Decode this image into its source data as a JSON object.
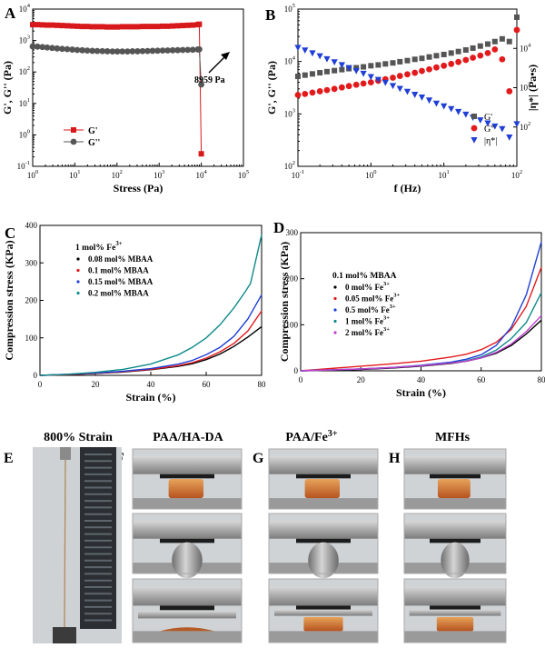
{
  "chart_data": [
    {
      "id": "A",
      "panel_label": "A",
      "type": "line",
      "xlabel": "Stress (Pa)",
      "ylabel": "G', G'' (Pa)",
      "x_scale": "log",
      "y_scale": "log",
      "xlim": [
        1,
        100000
      ],
      "ylim": [
        0.1,
        10000
      ],
      "x_ticks": [
        "10^0",
        "10^1",
        "10^2",
        "10^3",
        "10^4",
        "10^5"
      ],
      "y_ticks": [
        "10^-1",
        "10^0",
        "10^1",
        "10^2",
        "10^3",
        "10^4"
      ],
      "legend_position": "bottom-left",
      "annotation": "8959 Pa",
      "series": [
        {
          "name": "G'",
          "color": "#d7191c",
          "marker": "square",
          "x": [
            1,
            1.3,
            1.7,
            2.2,
            2.9,
            3.8,
            5,
            6.6,
            8.7,
            11.4,
            15,
            19.7,
            26,
            34,
            45,
            59,
            78,
            102,
            134,
            177,
            233,
            307,
            404,
            531,
            699,
            920,
            1211,
            1594,
            2098,
            2761,
            3634,
            4783,
            6296,
            8287,
            8959,
            10000
          ],
          "y": [
            3200,
            3200,
            3150,
            3100,
            3100,
            3050,
            3000,
            2950,
            2900,
            2850,
            2800,
            2800,
            2750,
            2750,
            2750,
            2700,
            2700,
            2700,
            2750,
            2750,
            2750,
            2750,
            2800,
            2800,
            2800,
            2800,
            2850,
            2850,
            2900,
            2950,
            3000,
            3050,
            3100,
            3200,
            3300,
            0.25
          ]
        },
        {
          "name": "G''",
          "color": "#555555",
          "marker": "circle",
          "x": [
            1,
            1.3,
            1.7,
            2.2,
            2.9,
            3.8,
            5,
            6.6,
            8.7,
            11.4,
            15,
            19.7,
            26,
            34,
            45,
            59,
            78,
            102,
            134,
            177,
            233,
            307,
            404,
            531,
            699,
            920,
            1211,
            1594,
            2098,
            2761,
            3634,
            4783,
            6296,
            8287,
            8959,
            10000
          ],
          "y": [
            650,
            640,
            620,
            600,
            580,
            560,
            545,
            530,
            515,
            500,
            490,
            480,
            470,
            465,
            460,
            455,
            450,
            450,
            450,
            450,
            455,
            455,
            460,
            465,
            470,
            475,
            480,
            485,
            490,
            495,
            500,
            505,
            510,
            520,
            525,
            40
          ]
        }
      ]
    },
    {
      "id": "B",
      "panel_label": "B",
      "type": "scatter",
      "xlabel": "f (Hz)",
      "ylabel": "G', G'' (Pa)",
      "ylabel_right": "|η*| (Pa•s)",
      "x_scale": "log",
      "y_scale": "log",
      "y2_scale": "log",
      "xlim": [
        0.1,
        100
      ],
      "ylim": [
        100,
        100000
      ],
      "y2lim": [
        10,
        100000
      ],
      "x_ticks": [
        "10^-1",
        "10^0",
        "10^1",
        "10^2"
      ],
      "y_ticks": [
        "10^2",
        "10^3",
        "10^4",
        "10^5"
      ],
      "y2_ticks": [
        "10^2",
        "10^3",
        "10^4"
      ],
      "legend_position": "bottom-right",
      "series": [
        {
          "name": "G'",
          "color": "#555555",
          "marker": "square",
          "axis": "left",
          "x": [
            0.1,
            0.125,
            0.158,
            0.2,
            0.25,
            0.316,
            0.4,
            0.5,
            0.63,
            0.79,
            1,
            1.26,
            1.58,
            2,
            2.5,
            3.16,
            4,
            5,
            6.3,
            7.9,
            10,
            12.6,
            15.8,
            20,
            25,
            31.6,
            40,
            50,
            63,
            79,
            100
          ],
          "y": [
            5200,
            5500,
            5800,
            6100,
            6400,
            6700,
            7000,
            7300,
            7600,
            7900,
            8300,
            8600,
            9000,
            9400,
            9900,
            10400,
            11000,
            11500,
            12200,
            12900,
            13600,
            14500,
            15500,
            16600,
            18000,
            19700,
            21500,
            24000,
            27000,
            24000,
            70000
          ]
        },
        {
          "name": "G''",
          "color": "#e31a1c",
          "marker": "circle",
          "axis": "left",
          "x": [
            0.1,
            0.125,
            0.158,
            0.2,
            0.25,
            0.316,
            0.4,
            0.5,
            0.63,
            0.79,
            1,
            1.26,
            1.58,
            2,
            2.5,
            3.16,
            4,
            5,
            6.3,
            7.9,
            10,
            12.6,
            15.8,
            20,
            25,
            31.6,
            40,
            50,
            63,
            79,
            100
          ],
          "y": [
            2300,
            2400,
            2550,
            2700,
            2850,
            3000,
            3200,
            3400,
            3600,
            3800,
            4000,
            4300,
            4600,
            4900,
            5300,
            5700,
            6100,
            6600,
            7100,
            7700,
            8300,
            9000,
            9800,
            10700,
            11800,
            13000,
            14500,
            17000,
            11000,
            2700,
            40000
          ]
        },
        {
          "name": "|η*|",
          "color": "#1f3fd6",
          "marker": "triangle-down",
          "axis": "right",
          "x": [
            0.1,
            0.125,
            0.158,
            0.2,
            0.25,
            0.316,
            0.4,
            0.5,
            0.63,
            0.79,
            1,
            1.26,
            1.58,
            2,
            2.5,
            3.16,
            4,
            5,
            6.3,
            7.9,
            10,
            12.6,
            15.8,
            20,
            25,
            31.6,
            40,
            50,
            63,
            79,
            100
          ],
          "y": [
            10500,
            9000,
            7600,
            6400,
            5400,
            4500,
            3800,
            3200,
            2700,
            2300,
            1900,
            1600,
            1350,
            1120,
            950,
            800,
            670,
            570,
            480,
            400,
            340,
            290,
            245,
            210,
            175,
            150,
            125,
            105,
            90,
            55,
            120
          ]
        }
      ]
    },
    {
      "id": "C",
      "panel_label": "C",
      "type": "line",
      "xlabel": "Strain (%)",
      "ylabel": "Compression stress (KPa)",
      "xlim": [
        0,
        80
      ],
      "ylim": [
        0,
        400
      ],
      "x_ticks": [
        0,
        20,
        40,
        60,
        80
      ],
      "y_ticks": [
        0,
        100,
        200,
        300,
        400
      ],
      "legend_title": "1 mol% Fe3+",
      "legend_position": "center-left",
      "series": [
        {
          "name": "0.08 mol%  MBAA",
          "color": "#000000",
          "x": [
            0,
            10,
            20,
            30,
            40,
            50,
            55,
            60,
            65,
            70,
            75,
            80
          ],
          "y": [
            0,
            2,
            5,
            9,
            15,
            24,
            31,
            42,
            57,
            77,
            102,
            130
          ]
        },
        {
          "name": "0.1 mol%  MBAA",
          "color": "#e31a1c",
          "x": [
            0,
            10,
            20,
            30,
            40,
            50,
            55,
            60,
            65,
            70,
            75,
            80
          ],
          "y": [
            0,
            2,
            5,
            10,
            16,
            26,
            34,
            46,
            63,
            85,
            118,
            172
          ]
        },
        {
          "name": "0.15 mol%  MBAA",
          "color": "#1f3fd6",
          "x": [
            0,
            10,
            20,
            30,
            40,
            50,
            55,
            60,
            65,
            70,
            75,
            80
          ],
          "y": [
            0,
            3,
            6,
            11,
            18,
            30,
            40,
            55,
            75,
            104,
            150,
            215
          ]
        },
        {
          "name": "0.2 mol%  MBAA",
          "color": "#0f8a8a",
          "x": [
            0,
            10,
            20,
            30,
            40,
            50,
            55,
            60,
            65,
            70,
            74,
            76,
            80
          ],
          "y": [
            0,
            3,
            8,
            16,
            30,
            55,
            75,
            100,
            135,
            180,
            222,
            245,
            375
          ]
        }
      ]
    },
    {
      "id": "D",
      "panel_label": "D",
      "type": "line",
      "xlabel": "Strain (%)",
      "ylabel": "Compression stress (KPa)",
      "xlim": [
        0,
        80
      ],
      "ylim": [
        0,
        300
      ],
      "x_ticks": [
        0,
        20,
        40,
        60,
        80
      ],
      "y_ticks": [
        0,
        100,
        200,
        300
      ],
      "legend_title": "0.1 mol% MBAA",
      "legend_position": "center-left",
      "series": [
        {
          "name": "0 mol%     Fe3+",
          "color": "#000000",
          "x": [
            0,
            10,
            20,
            30,
            40,
            50,
            55,
            60,
            65,
            70,
            75,
            80
          ],
          "y": [
            0,
            1,
            3,
            6,
            10,
            16,
            21,
            28,
            38,
            55,
            80,
            110
          ]
        },
        {
          "name": "0.05 mol%  Fe3+",
          "color": "#e31a1c",
          "x": [
            0,
            10,
            20,
            30,
            40,
            50,
            55,
            60,
            65,
            70,
            75,
            80
          ],
          "y": [
            0,
            5,
            10,
            15,
            21,
            30,
            36,
            46,
            62,
            90,
            140,
            225
          ]
        },
        {
          "name": "0.5 mol%  Fe3+",
          "color": "#1f3fd6",
          "x": [
            0,
            10,
            20,
            30,
            40,
            50,
            55,
            60,
            65,
            70,
            75,
            80
          ],
          "y": [
            0,
            2,
            4,
            7,
            12,
            19,
            25,
            35,
            55,
            95,
            165,
            280
          ]
        },
        {
          "name": "1 mol%     Fe3+",
          "color": "#0f8a8a",
          "x": [
            0,
            10,
            20,
            30,
            40,
            50,
            55,
            60,
            65,
            70,
            75,
            80
          ],
          "y": [
            0,
            2,
            4,
            7,
            11,
            17,
            22,
            30,
            45,
            70,
            105,
            170
          ]
        },
        {
          "name": "2 mol%     Fe3+",
          "color": "#c03ed0",
          "x": [
            0,
            10,
            20,
            30,
            40,
            50,
            55,
            60,
            65,
            70,
            75,
            80
          ],
          "y": [
            0,
            2,
            4,
            7,
            11,
            17,
            21,
            28,
            40,
            58,
            85,
            120
          ]
        }
      ]
    }
  ],
  "photos": {
    "E": {
      "label": "E",
      "title": "800% Strain"
    },
    "F": {
      "label": "F",
      "title": "PAA/HA-DA"
    },
    "G": {
      "label": "G",
      "title": "PAA/Fe3+"
    },
    "H": {
      "label": "H",
      "title": "MFHs"
    }
  }
}
